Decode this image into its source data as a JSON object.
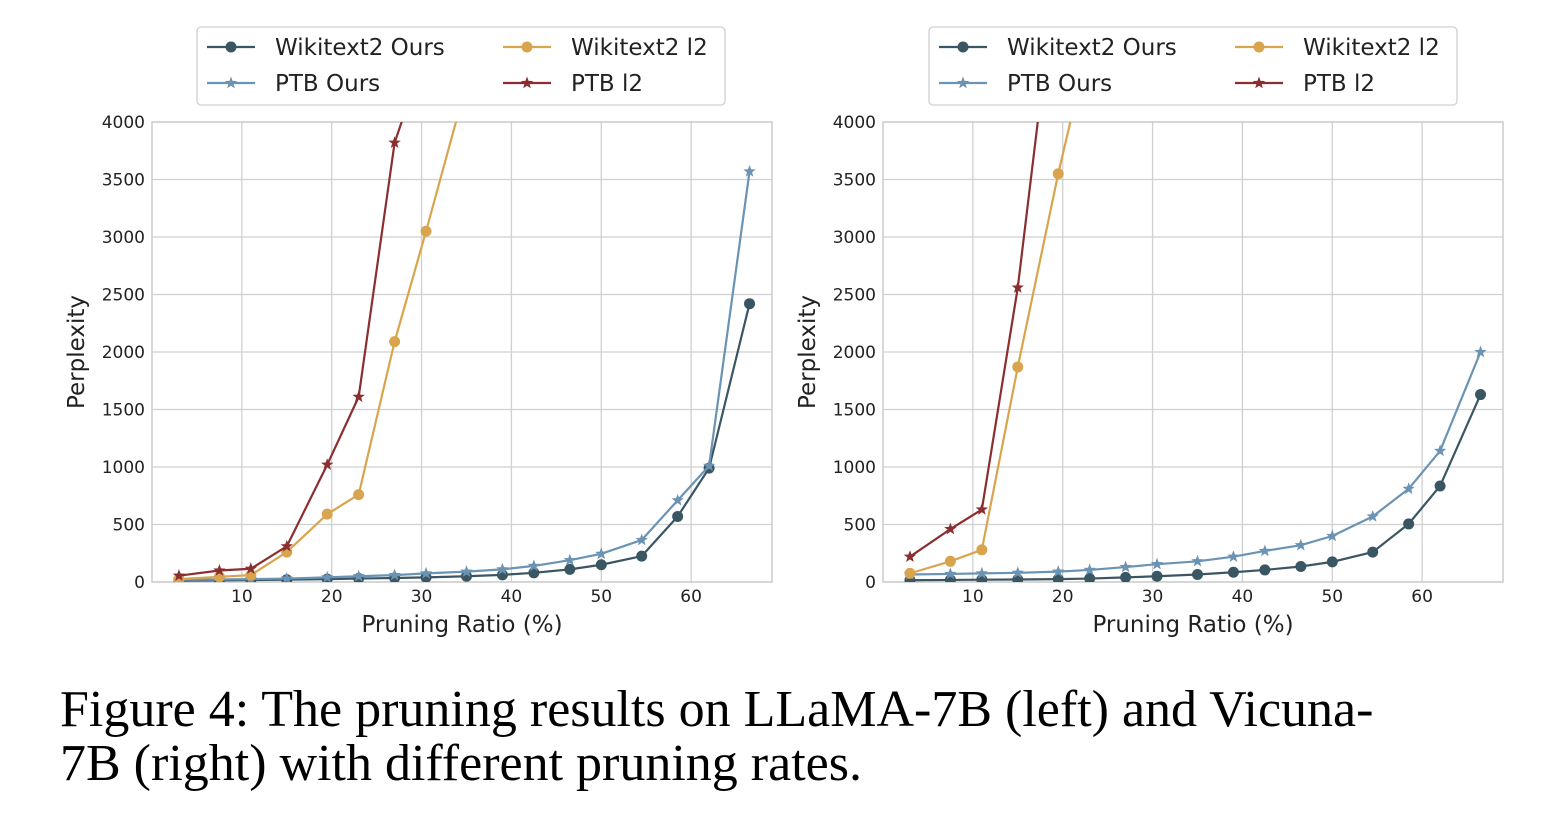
{
  "figure": {
    "caption_line1": "Figure 4: The pruning results on LLaMA-7B (left) and Vicuna-",
    "caption_line2": "7B (right) with different pruning rates."
  },
  "chart_data": [
    {
      "type": "line",
      "panel": "left",
      "xlabel": "Pruning Ratio (%)",
      "ylabel": "Perplexity",
      "xlim": [
        0,
        69
      ],
      "ylim": [
        0,
        4000
      ],
      "xticks": [
        10,
        20,
        30,
        40,
        50,
        60
      ],
      "yticks": [
        0,
        500,
        1000,
        1500,
        2000,
        2500,
        3000,
        3500,
        4000
      ],
      "grid": true,
      "legend_position": "top-center",
      "series": [
        {
          "name": "Wikitext2 Ours",
          "color": "#3b5663",
          "marker": "circle",
          "x": [
            3,
            7.5,
            11,
            15,
            19.5,
            23,
            27,
            30.5,
            35,
            39,
            42.5,
            46.5,
            50,
            54.5,
            58.5,
            62,
            66.5
          ],
          "y": [
            12,
            14,
            17,
            20,
            25,
            30,
            35,
            40,
            50,
            62,
            80,
            110,
            150,
            225,
            570,
            990,
            2420
          ]
        },
        {
          "name": "PTB Ours",
          "color": "#6b93b3",
          "marker": "star",
          "x": [
            3,
            7.5,
            11,
            15,
            19.5,
            23,
            27,
            30.5,
            35,
            39,
            42.5,
            46.5,
            50,
            54.5,
            58.5,
            62,
            66.5
          ],
          "y": [
            20,
            22,
            25,
            30,
            40,
            50,
            60,
            75,
            90,
            110,
            140,
            190,
            245,
            365,
            710,
            1010,
            3570
          ]
        },
        {
          "name": "Wikitext2 l2",
          "color": "#d9a44e",
          "marker": "circle",
          "x": [
            3,
            7.5,
            11,
            15,
            19.5,
            23,
            27,
            30.5,
            34
          ],
          "y": [
            25,
            45,
            60,
            260,
            590,
            760,
            2090,
            3050,
            4050
          ]
        },
        {
          "name": "PTB l2",
          "color": "#8b2e2f",
          "marker": "star",
          "x": [
            3,
            7.5,
            11,
            15,
            19.5,
            23,
            27,
            28
          ],
          "y": [
            55,
            100,
            115,
            310,
            1020,
            1610,
            3820,
            4050
          ]
        }
      ]
    },
    {
      "type": "line",
      "panel": "right",
      "xlabel": "Pruning Ratio (%)",
      "ylabel": "Perplexity",
      "xlim": [
        0,
        69
      ],
      "ylim": [
        0,
        4000
      ],
      "xticks": [
        10,
        20,
        30,
        40,
        50,
        60
      ],
      "yticks": [
        0,
        500,
        1000,
        1500,
        2000,
        2500,
        3000,
        3500,
        4000
      ],
      "grid": true,
      "legend_position": "top-center",
      "series": [
        {
          "name": "Wikitext2 Ours",
          "color": "#3b5663",
          "marker": "circle",
          "x": [
            3,
            7.5,
            11,
            15,
            19.5,
            23,
            27,
            30.5,
            35,
            39,
            42.5,
            46.5,
            50,
            54.5,
            58.5,
            62,
            66.5
          ],
          "y": [
            15,
            18,
            20,
            22,
            25,
            30,
            40,
            50,
            65,
            85,
            105,
            135,
            175,
            260,
            505,
            835,
            1630
          ]
        },
        {
          "name": "PTB Ours",
          "color": "#6b93b3",
          "marker": "star",
          "x": [
            3,
            7.5,
            11,
            15,
            19.5,
            23,
            27,
            30.5,
            35,
            39,
            42.5,
            46.5,
            50,
            54.5,
            58.5,
            62,
            66.5
          ],
          "y": [
            65,
            70,
            75,
            80,
            90,
            105,
            130,
            155,
            180,
            220,
            270,
            320,
            400,
            570,
            810,
            1140,
            2000
          ]
        },
        {
          "name": "Wikitext2 l2",
          "color": "#d9a44e",
          "marker": "circle",
          "x": [
            3,
            7.5,
            11,
            15,
            19.5,
            21
          ],
          "y": [
            75,
            180,
            280,
            1870,
            3550,
            4050
          ]
        },
        {
          "name": "PTB l2",
          "color": "#8b2e2f",
          "marker": "star",
          "x": [
            3,
            7.5,
            11,
            15,
            17.3
          ],
          "y": [
            220,
            460,
            630,
            2560,
            4050
          ]
        }
      ]
    }
  ]
}
